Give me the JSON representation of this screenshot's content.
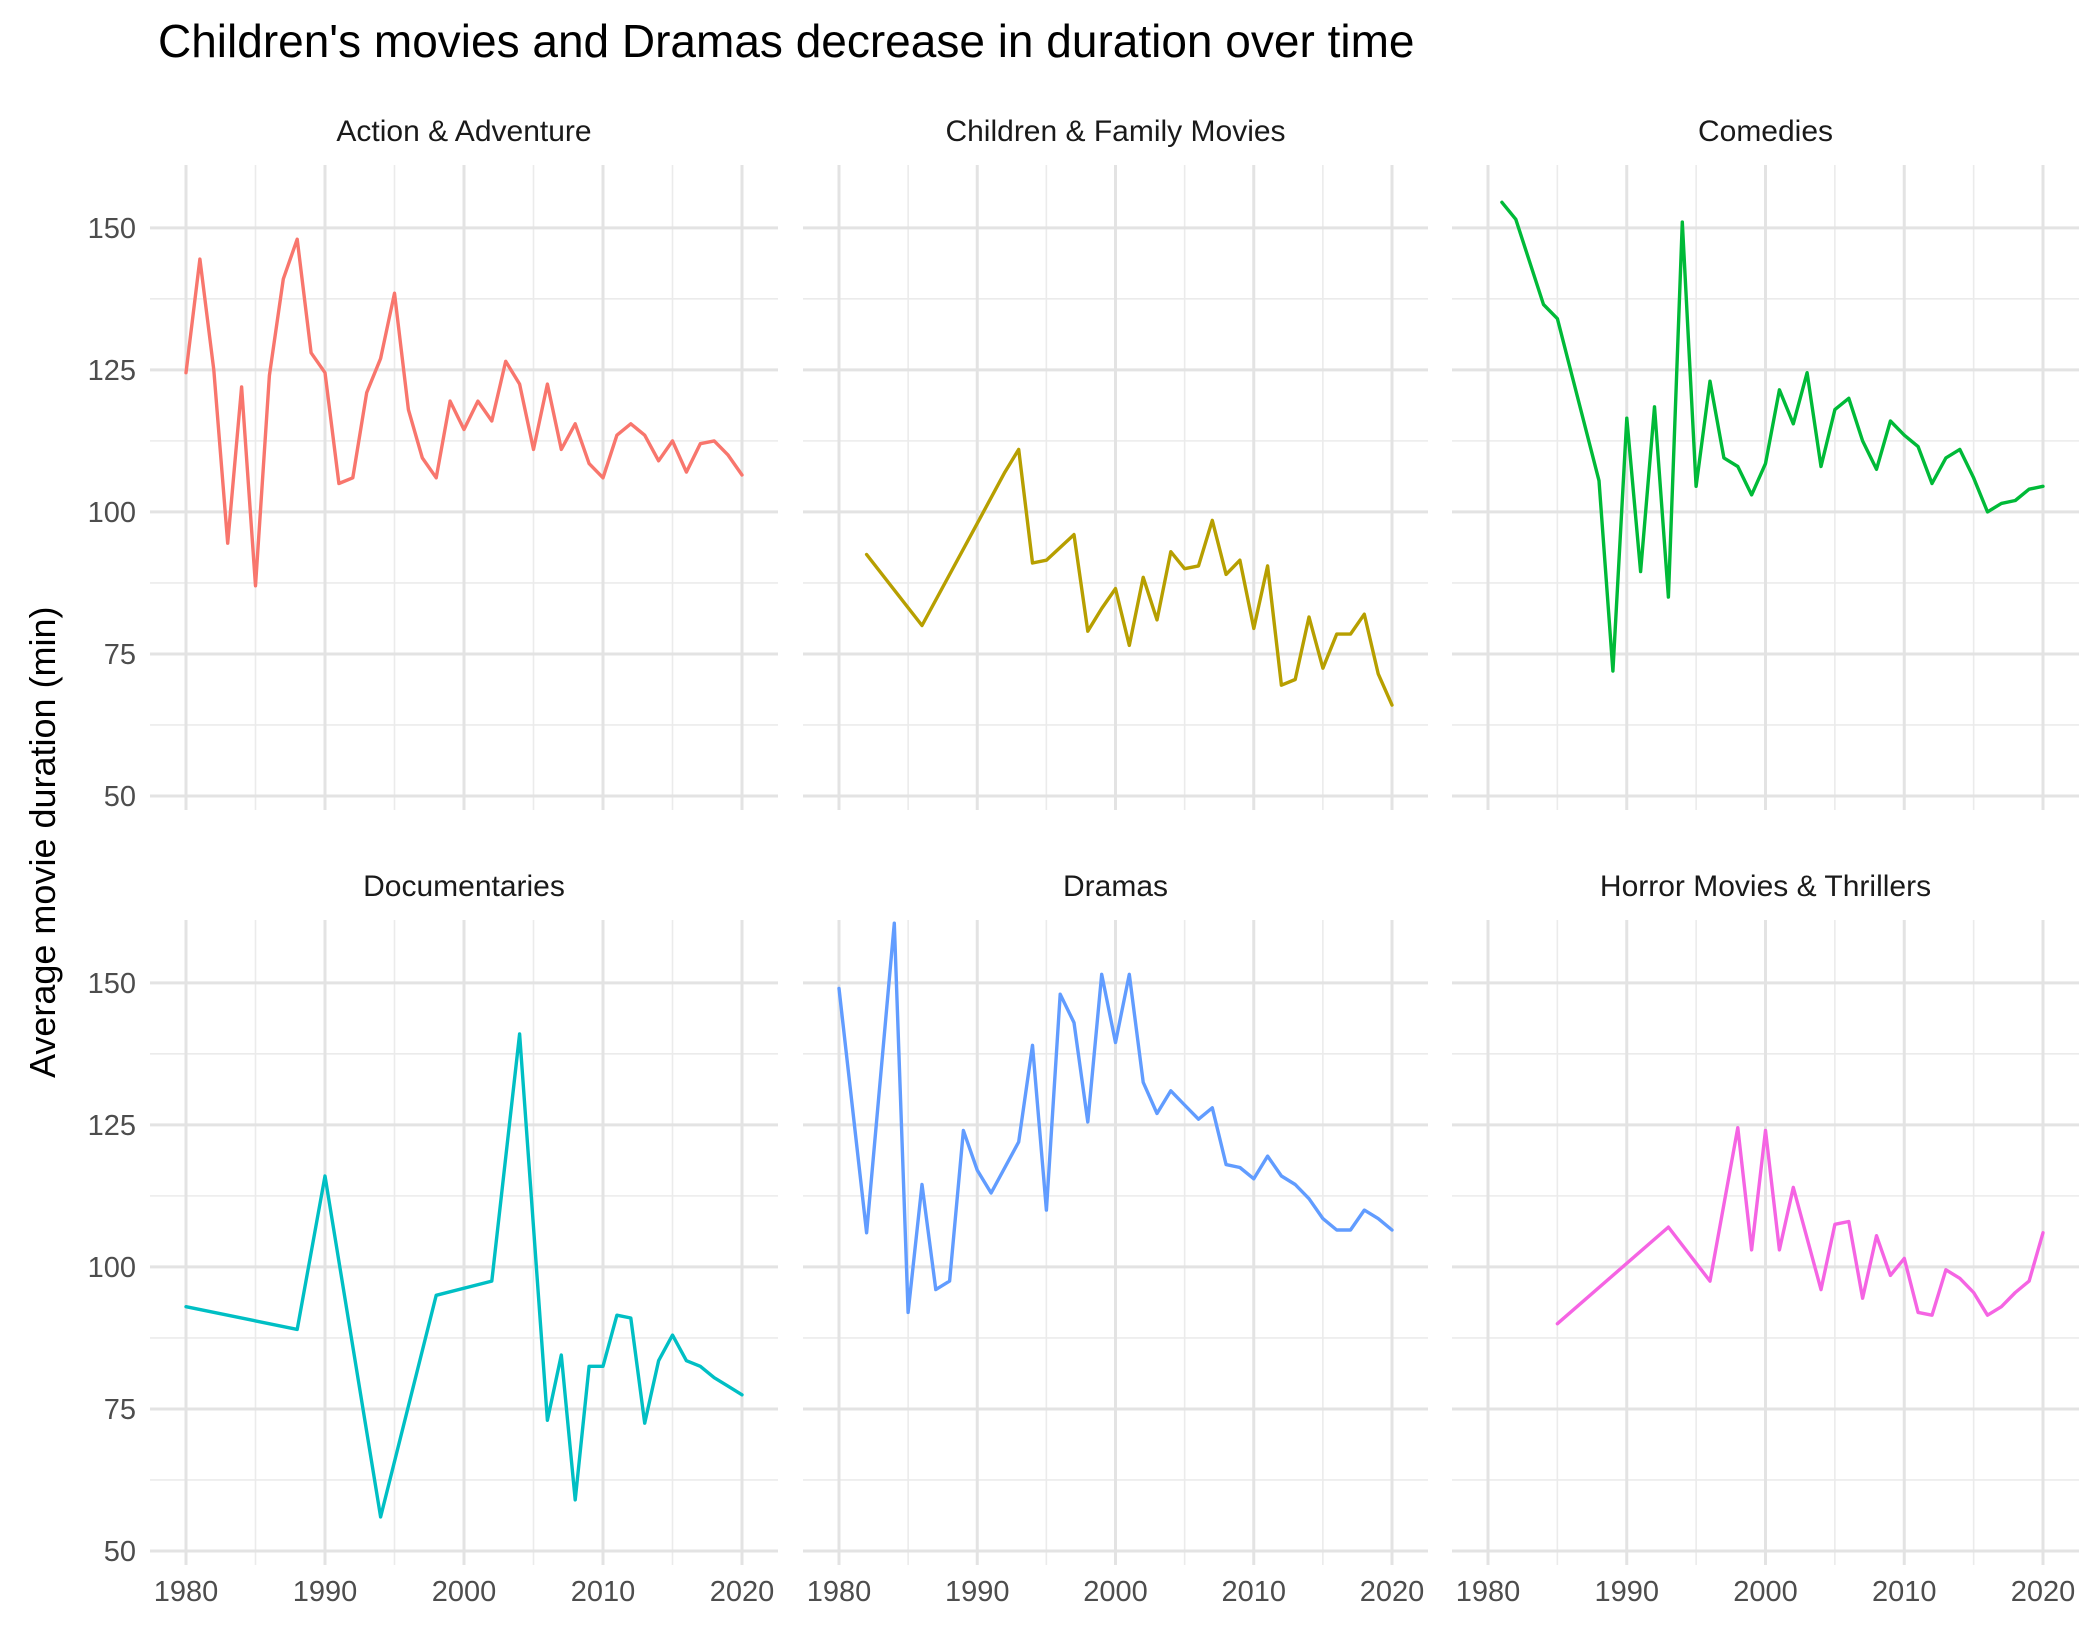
{
  "chart_data": {
    "type": "line",
    "title": "Children's movies and Dramas decrease in duration over time",
    "xlabel": "",
    "ylabel": "Average movie duration (min)",
    "xlim": [
      1980,
      2020
    ],
    "ylim": [
      50,
      160
    ],
    "x_ticks": [
      "1980",
      "1990",
      "2000",
      "2010",
      "2020"
    ],
    "y_ticks": [
      "50",
      "75",
      "100",
      "125",
      "150"
    ],
    "grid": true,
    "legend": "none",
    "facets": [
      {
        "name": "Action & Adventure",
        "color": "#F8766D",
        "x": [
          1980,
          1981,
          1982,
          1983,
          1984,
          1985,
          1986,
          1987,
          1988,
          1989,
          1990,
          1991,
          1992,
          1993,
          1994,
          1995,
          1996,
          1997,
          1998,
          1999,
          2000,
          2001,
          2002,
          2003,
          2004,
          2005,
          2006,
          2007,
          2008,
          2009,
          2010,
          2011,
          2012,
          2013,
          2014,
          2015,
          2016,
          2017,
          2018,
          2019,
          2020
        ],
        "y": [
          124.5,
          144.5,
          125,
          94.5,
          122,
          87,
          124,
          141,
          148,
          128,
          124.5,
          105,
          106,
          121,
          127,
          138.5,
          118,
          109.5,
          106,
          119.5,
          114.5,
          119.5,
          116,
          126.5,
          122.5,
          111,
          122.5,
          111,
          115.5,
          108.5,
          106,
          113.5,
          115.5,
          113.5,
          109,
          112.5,
          107,
          112,
          112.5,
          110,
          106.5
        ]
      },
      {
        "name": "Children & Family Movies",
        "color": "#B79F00",
        "x": [
          1982,
          1986,
          1990,
          1992,
          1993,
          1994,
          1995,
          1997,
          1998,
          1999,
          2000,
          2001,
          2002,
          2003,
          2004,
          2005,
          2006,
          2007,
          2008,
          2009,
          2010,
          2011,
          2012,
          2013,
          2014,
          2015,
          2016,
          2017,
          2018,
          2019,
          2020
        ],
        "y": [
          92.5,
          80,
          98,
          107,
          111,
          91,
          91.5,
          96,
          79,
          83,
          86.5,
          76.5,
          88.5,
          81,
          93,
          90,
          90.5,
          98.5,
          89,
          91.5,
          79.5,
          90.5,
          69.5,
          70.5,
          81.5,
          72.5,
          78.5,
          78.5,
          82,
          71.5,
          66
        ]
      },
      {
        "name": "Comedies",
        "color": "#00BA38",
        "x": [
          1981,
          1982,
          1984,
          1985,
          1988,
          1989,
          1990,
          1991,
          1992,
          1993,
          1994,
          1995,
          1996,
          1997,
          1998,
          1999,
          2000,
          2001,
          2002,
          2003,
          2004,
          2005,
          2006,
          2007,
          2008,
          2009,
          2010,
          2011,
          2012,
          2013,
          2014,
          2015,
          2016,
          2017,
          2018,
          2019,
          2020
        ],
        "y": [
          154.5,
          151.5,
          136.5,
          134,
          105.5,
          72,
          116.5,
          89.5,
          118.5,
          85,
          151,
          104.5,
          123,
          109.5,
          108,
          103,
          108.5,
          121.5,
          115.5,
          124.5,
          108,
          118,
          120,
          112.5,
          107.5,
          116,
          113.5,
          111.5,
          105,
          109.5,
          111,
          106,
          100,
          101.5,
          102,
          104,
          104.5
        ]
      },
      {
        "name": "Documentaries",
        "color": "#00BFC4",
        "x": [
          1980,
          1988,
          1990,
          1994,
          1998,
          2002,
          2004,
          2006,
          2007,
          2008,
          2009,
          2010,
          2011,
          2012,
          2013,
          2014,
          2015,
          2016,
          2017,
          2018,
          2019,
          2020
        ],
        "y": [
          93,
          89,
          116,
          56,
          95,
          97.5,
          141,
          73,
          84.5,
          59,
          82.5,
          82.5,
          91.5,
          91,
          72.5,
          83.5,
          88,
          83.5,
          82.5,
          80.5,
          79,
          77.5
        ]
      },
      {
        "name": "Dramas",
        "color": "#619CFF",
        "x": [
          1980,
          1982,
          1984,
          1985,
          1986,
          1987,
          1988,
          1989,
          1990,
          1991,
          1993,
          1994,
          1995,
          1996,
          1997,
          1998,
          1999,
          2000,
          2001,
          2002,
          2003,
          2004,
          2005,
          2006,
          2007,
          2008,
          2009,
          2010,
          2011,
          2012,
          2013,
          2014,
          2015,
          2016,
          2017,
          2018,
          2019,
          2020
        ],
        "y": [
          149,
          106,
          160.5,
          92,
          114.5,
          96,
          97.5,
          124,
          117,
          113,
          122,
          139,
          110,
          148,
          143,
          125.5,
          151.5,
          139.5,
          151.5,
          132.5,
          127,
          131,
          128.5,
          126,
          128,
          118,
          117.5,
          115.5,
          119.5,
          116,
          114.5,
          112,
          108.5,
          106.5,
          106.5,
          110,
          108.5,
          106.5
        ]
      },
      {
        "name": "Horror Movies & Thrillers",
        "color": "#F564E3",
        "x": [
          1985,
          1993,
          1996,
          1998,
          1999,
          2000,
          2001,
          2002,
          2004,
          2005,
          2006,
          2007,
          2008,
          2009,
          2010,
          2011,
          2012,
          2013,
          2014,
          2015,
          2016,
          2017,
          2018,
          2019,
          2020
        ],
        "y": [
          90,
          107,
          97.5,
          124.5,
          103,
          124,
          103,
          114,
          96,
          107.5,
          108,
          94.5,
          105.5,
          98.5,
          101.5,
          92,
          91.5,
          99.5,
          98,
          95.5,
          91.5,
          93,
          95.5,
          97.5,
          106
        ]
      }
    ]
  }
}
